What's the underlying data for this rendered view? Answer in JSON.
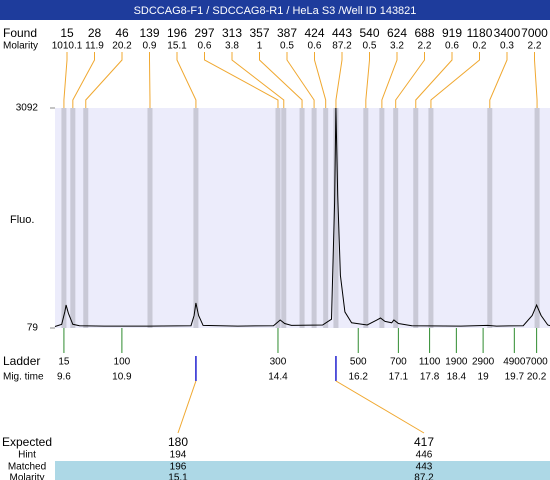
{
  "header": {
    "title": "SDCCAG8-F1 / SDCCAG8-R1 / HeLa S3 /Well ID 143821"
  },
  "found": {
    "label": "Found",
    "molarity_label": "Molarity",
    "sizes": [
      15,
      28,
      46,
      139,
      196,
      297,
      313,
      357,
      387,
      424,
      443,
      540,
      624,
      688,
      919,
      1180,
      3400,
      7000
    ],
    "molarity": [
      1010.1,
      11.9,
      20.2,
      0.9,
      15.1,
      0.6,
      3.8,
      1,
      0.5,
      0.6,
      87.2,
      0.5,
      3.2,
      2.2,
      0.6,
      0.2,
      0.3,
      2.2
    ],
    "times": [
      9.6,
      9.8,
      10.09,
      11.53,
      12.56,
      14.4,
      14.53,
      14.94,
      15.21,
      15.47,
      15.7,
      16.37,
      16.73,
      17.04,
      17.49,
      17.83,
      19.15,
      20.21
    ]
  },
  "plot": {
    "ylabel": "Fluo.",
    "ylim": [
      79,
      3092
    ],
    "yticks": [
      79,
      3092
    ],
    "xlim": [
      9.4,
      20.5
    ],
    "trace": {
      "time": [
        9.4,
        9.55,
        9.62,
        9.65,
        9.7,
        9.8,
        9.95,
        10.5,
        11.5,
        12.45,
        12.52,
        12.56,
        12.62,
        12.72,
        13.5,
        14.3,
        14.45,
        14.55,
        14.7,
        15.4,
        15.6,
        15.67,
        15.7,
        15.74,
        15.8,
        15.9,
        16.05,
        16.4,
        16.62,
        16.7,
        16.8,
        16.95,
        17.0,
        17.1,
        17.4,
        18.5,
        19.1,
        19.3,
        19.9,
        20.1,
        20.2,
        20.3,
        20.45,
        20.5
      ],
      "fluo": [
        100,
        130,
        300,
        394,
        280,
        130,
        110,
        105,
        105,
        110,
        250,
        421,
        250,
        115,
        105,
        110,
        188,
        140,
        115,
        120,
        200,
        1800,
        3092,
        1900,
        800,
        300,
        150,
        120,
        190,
        216,
        170,
        150,
        188,
        140,
        110,
        105,
        115,
        105,
        110,
        250,
        394,
        250,
        120,
        110
      ]
    }
  },
  "ladder": {
    "label": "Ladder",
    "time_label": "Mig. time",
    "sizes": [
      15,
      100,
      300,
      500,
      700,
      1100,
      1900,
      2900,
      4900,
      7000
    ],
    "times": [
      9.6,
      10.9,
      14.4,
      16.2,
      17.1,
      17.8,
      18.4,
      19,
      19.7,
      20.2
    ]
  },
  "table": {
    "times": [
      12.56,
      15.7
    ],
    "rows": [
      {
        "label": "Expected",
        "values": [
          180,
          417
        ]
      },
      {
        "label": "Hint",
        "values": [
          194,
          446
        ]
      },
      {
        "label": "Matched",
        "values": [
          196,
          443
        ]
      },
      {
        "label": "Molarity",
        "values": [
          15.1,
          87.2
        ]
      }
    ]
  }
}
